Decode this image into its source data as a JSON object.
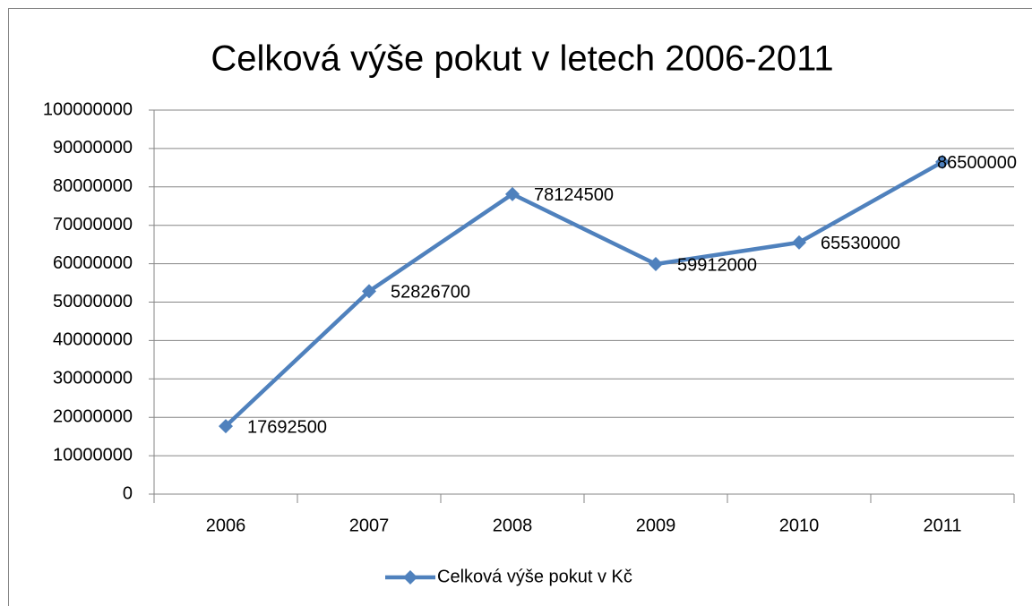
{
  "chart_data": {
    "type": "line",
    "title": "Celková výše pokut v letech 2006-2011",
    "categories": [
      "2006",
      "2007",
      "2008",
      "2009",
      "2010",
      "2011"
    ],
    "series": [
      {
        "name": "Celková výše pokut v Kč",
        "color": "#4f81bd",
        "values": [
          17692500,
          52826700,
          78124500,
          59912000,
          65530000,
          86500000
        ]
      }
    ],
    "ylim": [
      0,
      100000000
    ],
    "yticks": [
      0,
      10000000,
      20000000,
      30000000,
      40000000,
      50000000,
      60000000,
      70000000,
      80000000,
      90000000,
      100000000
    ],
    "grid": true,
    "legend": "bottom",
    "data_labels": true
  }
}
